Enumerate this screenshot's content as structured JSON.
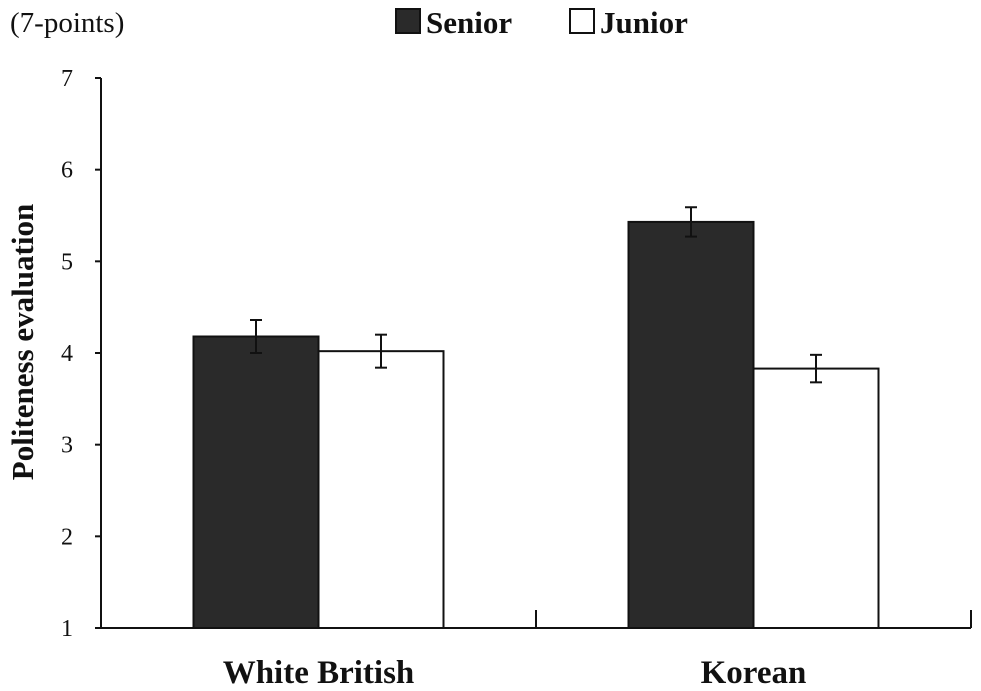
{
  "chart_data": {
    "type": "bar",
    "unit_label": "(7-points)",
    "ylabel": "Politeness evaluation",
    "xlabel": "",
    "categories": [
      "White British",
      "Korean"
    ],
    "series": [
      {
        "name": "Senior",
        "color": "#2a2a2a",
        "values": [
          4.18,
          5.43
        ],
        "error": [
          0.18,
          0.16
        ]
      },
      {
        "name": "Junior",
        "color": "#ffffff",
        "values": [
          4.02,
          3.83
        ],
        "error": [
          0.18,
          0.15
        ]
      }
    ],
    "ylim": [
      1,
      7
    ],
    "yticks": [
      1,
      2,
      3,
      4,
      5,
      6,
      7
    ],
    "grid": false,
    "legend_position": "top"
  }
}
